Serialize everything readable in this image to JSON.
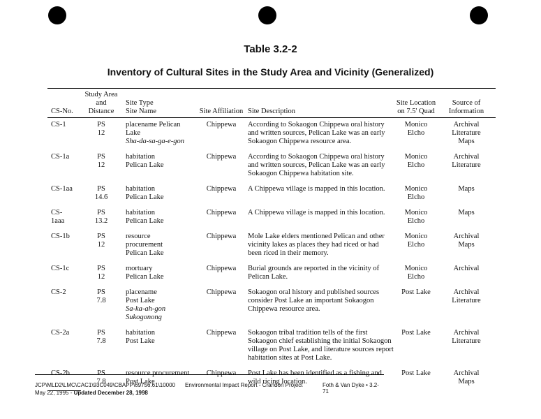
{
  "header": {
    "title": "Table 3.2-2",
    "subtitle": "Inventory of Cultural Sites in the Study Area and Vicinity (Generalized)"
  },
  "table": {
    "columns": [
      [
        "CS-No."
      ],
      [
        "Study Area",
        "and",
        "Distance"
      ],
      [
        "Site Type",
        "Site Name"
      ],
      [
        "Site Affiliation"
      ],
      [
        "Site Description"
      ],
      [
        "Site Location",
        "on 7.5' Quad"
      ],
      [
        "Source of",
        "Information"
      ]
    ],
    "rows": [
      {
        "cs_no": [
          "CS-1"
        ],
        "study_area": [
          "PS",
          "12"
        ],
        "site": {
          "lines": [
            "placename Pelican",
            "Lake"
          ],
          "native_names": [
            "Sha-da-sa-ga-e-gon"
          ]
        },
        "affiliation": [
          "Chippewa"
        ],
        "description": [
          "According to Sokaogon Chippewa oral history",
          "and written sources, Pelican Lake was an early",
          "Sokaogon Chippewa resource area."
        ],
        "location": [
          "Monico",
          "Elcho"
        ],
        "source": [
          "Archival",
          "Literature",
          "Maps"
        ]
      },
      {
        "cs_no": [
          "CS-1a"
        ],
        "study_area": [
          "PS",
          "12"
        ],
        "site": {
          "lines": [
            "habitation",
            "Pelican Lake"
          ],
          "native_names": []
        },
        "affiliation": [
          "Chippewa"
        ],
        "description": [
          "According to Sokaogon Chippewa oral history",
          "and written sources, Pelican Lake was an early",
          "Sokaogon Chippewa habitation site."
        ],
        "location": [
          "Monico",
          "Elcho"
        ],
        "source": [
          "Archival",
          "Literature"
        ]
      },
      {
        "cs_no": [
          "CS-1aa"
        ],
        "study_area": [
          "PS",
          "14.6"
        ],
        "site": {
          "lines": [
            "habitation",
            "Pelican Lake"
          ],
          "native_names": []
        },
        "affiliation": [
          "Chippewa"
        ],
        "description": [
          "A Chippewa village is mapped in this location."
        ],
        "location": [
          "Monico",
          "Elcho"
        ],
        "source": [
          "Maps"
        ]
      },
      {
        "cs_no": [
          "CS-",
          "1aaa"
        ],
        "study_area": [
          "PS",
          "13.2"
        ],
        "site": {
          "lines": [
            "habitation",
            "Pelican Lake"
          ],
          "native_names": []
        },
        "affiliation": [
          "Chippewa"
        ],
        "description": [
          "A Chippewa village is mapped in this location."
        ],
        "location": [
          "Monico",
          "Elcho"
        ],
        "source": [
          "Maps"
        ]
      },
      {
        "cs_no": [
          "CS-1b"
        ],
        "study_area": [
          "PS",
          "12"
        ],
        "site": {
          "lines": [
            "resource",
            "procurement",
            "Pelican Lake"
          ],
          "native_names": []
        },
        "affiliation": [
          "Chippewa"
        ],
        "description": [
          "Mole Lake elders mentioned Pelican and other",
          "vicinity lakes as places they had riced or had",
          "been riced in their memory."
        ],
        "location": [
          "Monico",
          "Elcho"
        ],
        "source": [
          "Archival",
          "Maps"
        ]
      },
      {
        "cs_no": [
          "CS-1c"
        ],
        "study_area": [
          "PS",
          "12"
        ],
        "site": {
          "lines": [
            "mortuary",
            "Pelican Lake"
          ],
          "native_names": []
        },
        "affiliation": [
          "Chippewa"
        ],
        "description": [
          "Burial grounds are reported in the vicinity of",
          "Pelican Lake."
        ],
        "location": [
          "Monico",
          "Elcho"
        ],
        "source": [
          "Archival"
        ]
      },
      {
        "cs_no": [
          "CS-2"
        ],
        "study_area": [
          "PS",
          "7.8"
        ],
        "site": {
          "lines": [
            "placename",
            "Post Lake"
          ],
          "native_names": [
            "Sa-ka-ah-gon",
            "Sukogonong"
          ]
        },
        "affiliation": [
          "Chippewa"
        ],
        "description": [
          "Sokaogon oral history and published sources",
          "consider Post Lake an important Sokaogon",
          "Chippewa resource area."
        ],
        "location": [
          "Post Lake"
        ],
        "source": [
          "Archival",
          "Literature"
        ]
      },
      {
        "cs_no": [
          "CS-2a"
        ],
        "study_area": [
          "PS",
          "7.8"
        ],
        "site": {
          "lines": [
            "habitation",
            "Post Lake"
          ],
          "native_names": []
        },
        "affiliation": [
          "Chippewa"
        ],
        "description": [
          "Sokaogon tribal tradition tells of the first",
          "Sokaogon chief establishing the initial Sokaogon",
          "village on Post Lake, and literature sources report",
          "habitation sites at Post Lake."
        ],
        "location": [
          "Post Lake"
        ],
        "source": [
          "Archival",
          "Literature"
        ]
      },
      {
        "cs_no": [
          "CS-2b"
        ],
        "study_area": [
          "PS",
          "7.8"
        ],
        "site": {
          "lines": [
            "resource procurement",
            "Post Lake"
          ],
          "native_names": []
        },
        "affiliation": [
          "Chippewa"
        ],
        "description": [
          "Post Lake has been identified as a fishing and",
          "wild ricing location."
        ],
        "location": [
          "Post Lake"
        ],
        "source": [
          "Archival",
          "Maps"
        ]
      }
    ]
  },
  "footer": {
    "path": "JCP\\MLD2\\LMC\\CAC1\\93C049\\CBAPP\\69756.61\\10000",
    "date": "May 22, 1995 - ",
    "updated": "Updated December 28, 1998",
    "report": "Environmental Impact Report - Crandon Project",
    "publisher": "Foth & Van Dyke • 3.2-71"
  }
}
